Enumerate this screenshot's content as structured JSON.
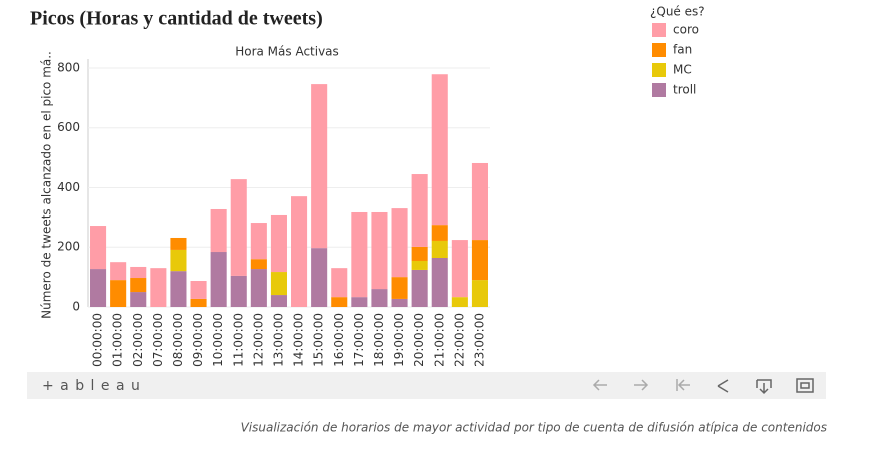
{
  "header": {
    "title": "Picos (Horas y cantidad de tweets)"
  },
  "toolbar": {
    "logo": "+ a b l e a u"
  },
  "caption": "Visualización de horarios de mayor actividad por tipo de cuenta de difusión atípica de contenidos",
  "chart_data": {
    "type": "stacked-bar",
    "title": "Hora Más Activas",
    "y_label": "Número de tweets alcanzado en el pico má..",
    "legend_title": "¿Qué es?",
    "legend": "top-right",
    "grid": true,
    "categories": [
      "00:00:00",
      "01:00:00",
      "02:00:00",
      "07:00:00",
      "08:00:00",
      "09:00:00",
      "10:00:00",
      "11:00:00",
      "12:00:00",
      "13:00:00",
      "14:00:00",
      "15:00:00",
      "16:00:00",
      "17:00:00",
      "18:00:00",
      "19:00:00",
      "20:00:00",
      "21:00:00",
      "22:00:00",
      "23:00:00"
    ],
    "series": [
      {
        "name": "coro",
        "color": "#ff9da7",
        "values": [
          144,
          60,
          37,
          130,
          0,
          60,
          144,
          324,
          121,
          191,
          371,
          549,
          97,
          285,
          258,
          231,
          244,
          505,
          191,
          258
        ]
      },
      {
        "name": "fan",
        "color": "#ff8c00",
        "values": [
          0,
          90,
          47,
          0,
          40,
          27,
          0,
          0,
          33,
          0,
          0,
          0,
          33,
          0,
          0,
          73,
          47,
          53,
          0,
          134
        ]
      },
      {
        "name": "MC",
        "color": "#e8c90a",
        "values": [
          0,
          0,
          0,
          0,
          71,
          0,
          0,
          0,
          0,
          77,
          0,
          0,
          0,
          0,
          0,
          0,
          30,
          57,
          33,
          90
        ]
      },
      {
        "name": "troll",
        "color": "#b07aa1",
        "values": [
          127,
          0,
          50,
          0,
          120,
          0,
          184,
          104,
          127,
          40,
          0,
          197,
          0,
          33,
          60,
          27,
          124,
          164,
          0,
          0
        ]
      }
    ],
    "ylim": [
      0,
      830
    ],
    "yticks": [
      0,
      200,
      400,
      600,
      800
    ]
  }
}
